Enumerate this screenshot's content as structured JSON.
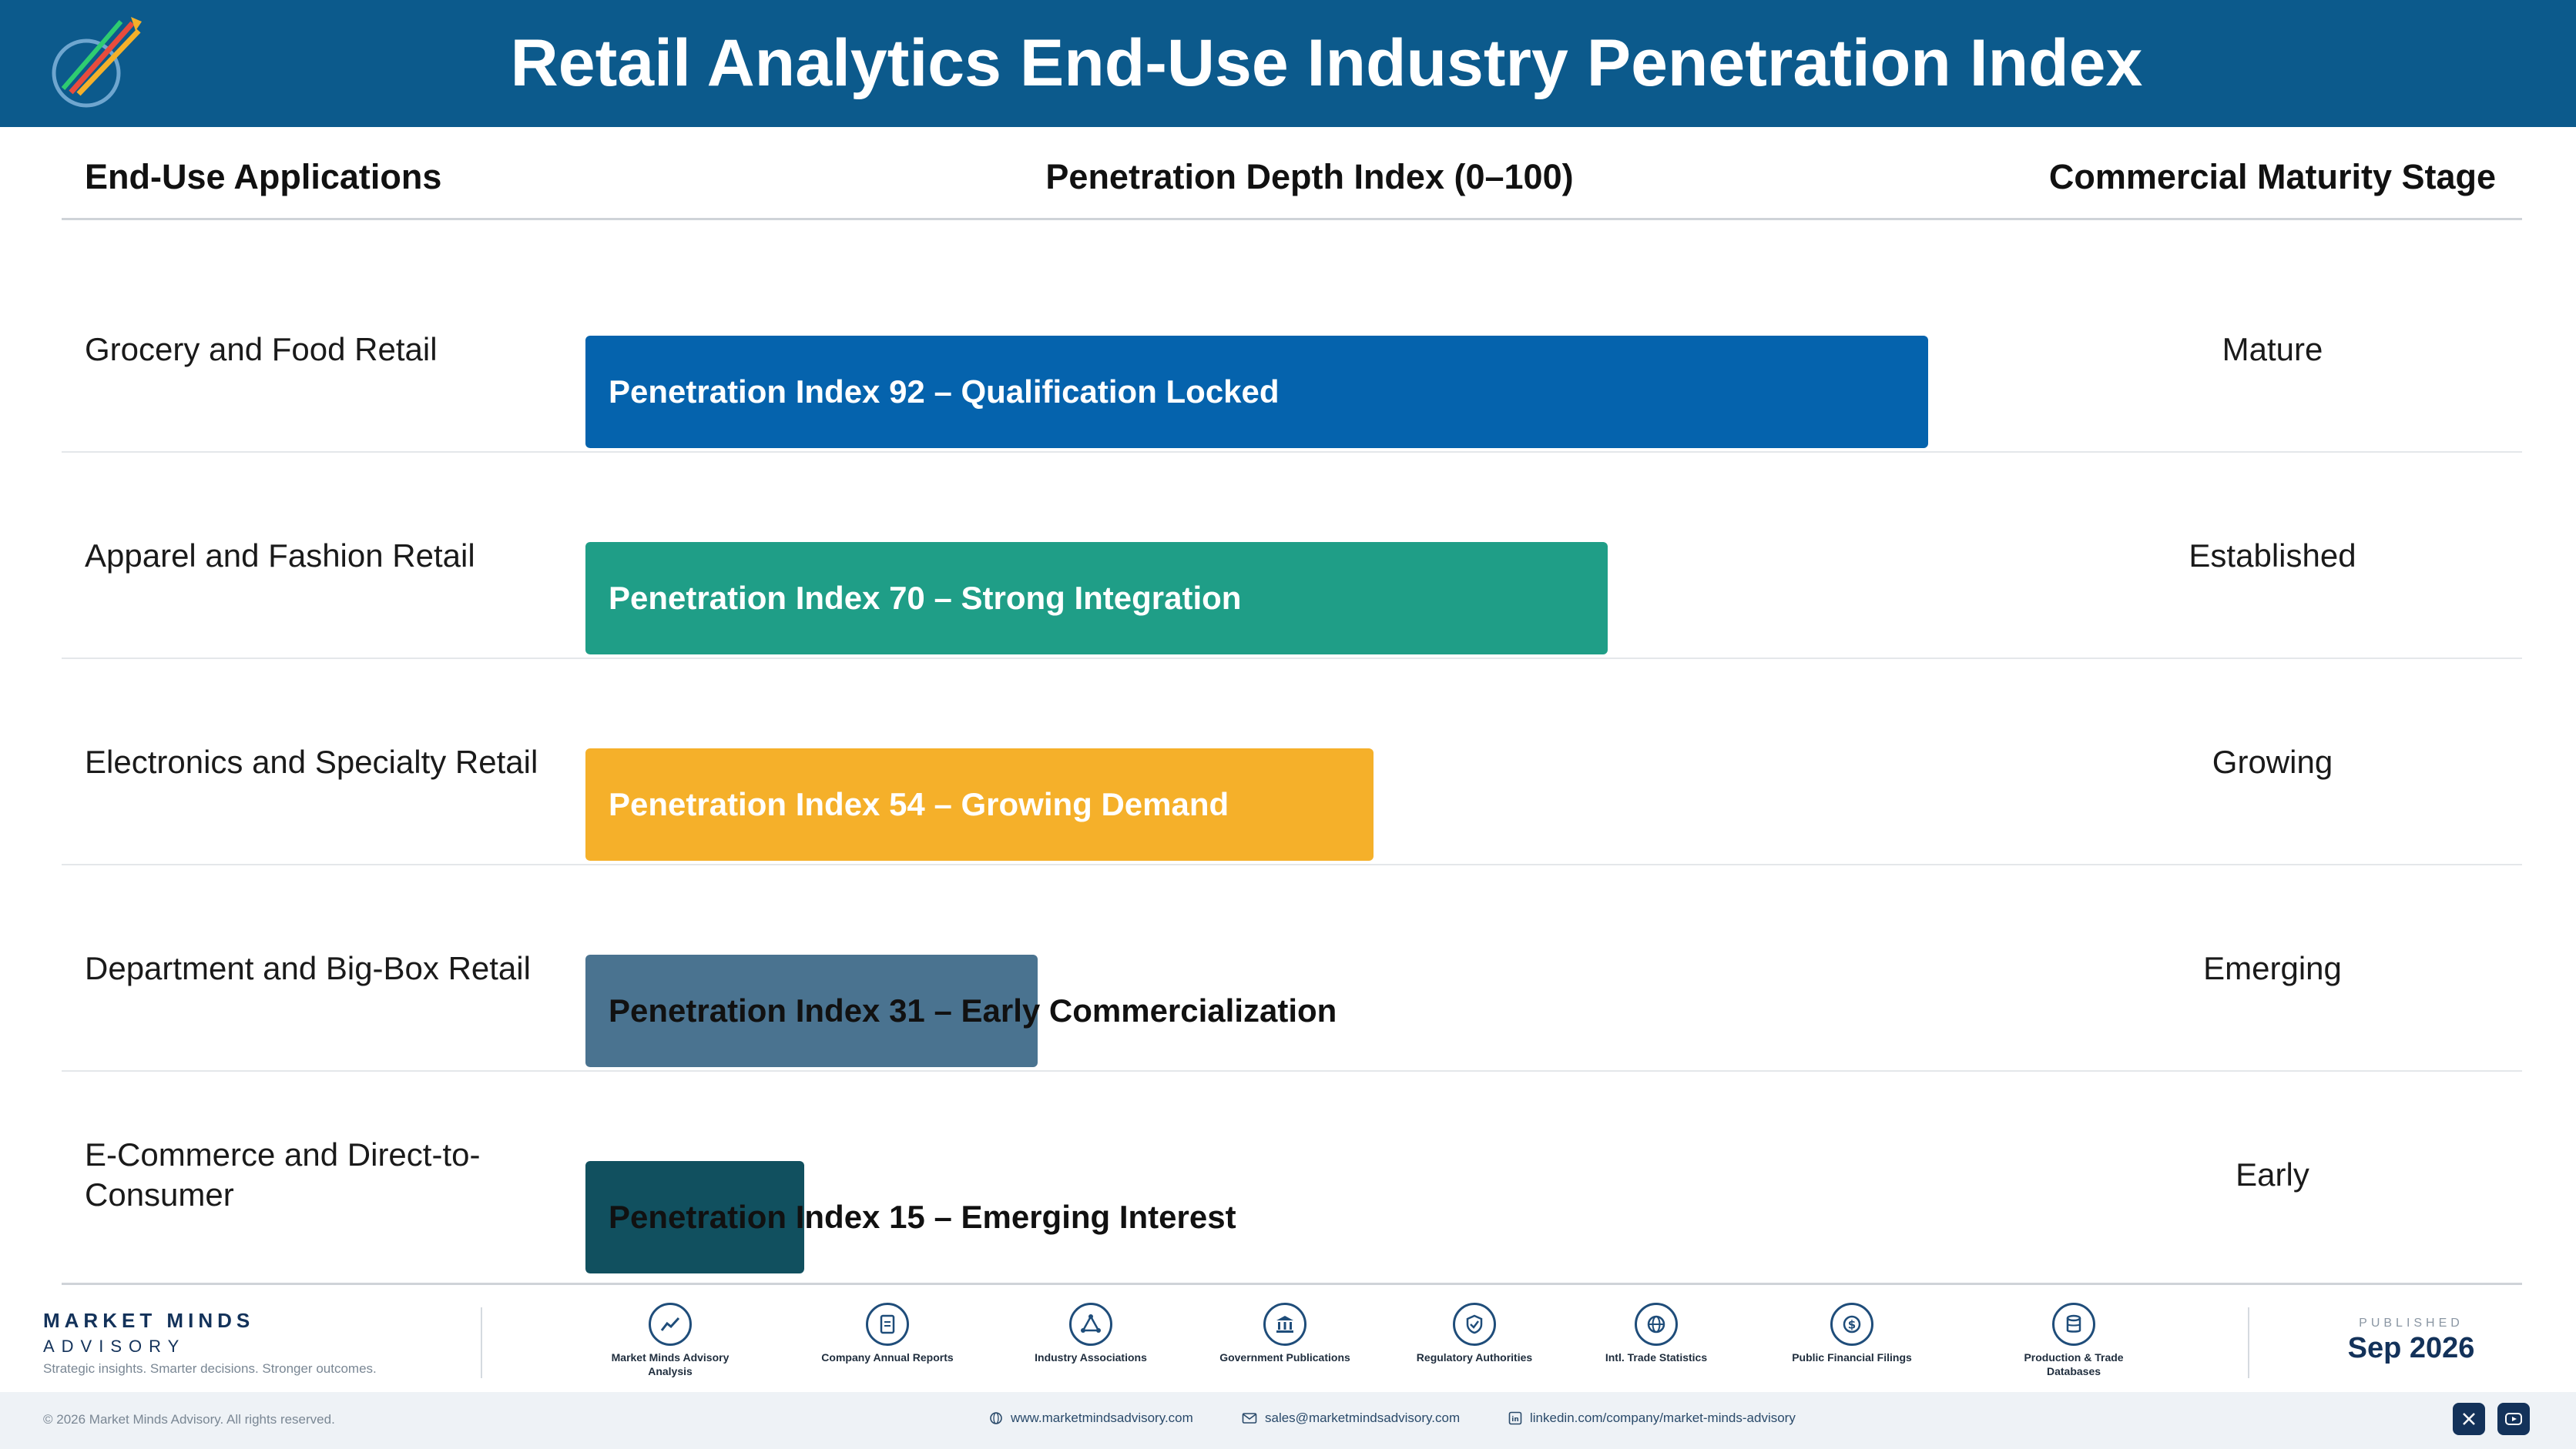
{
  "header": {
    "title": "Retail Analytics End-Use Industry Penetration Index"
  },
  "columns": {
    "applications": "End-Use Applications",
    "index": "Penetration Depth Index (0–100)",
    "stage": "Commercial Maturity Stage"
  },
  "chart_data": {
    "type": "bar",
    "orientation": "horizontal",
    "title": "Retail Analytics End-Use Industry Penetration Index",
    "xlim": [
      0,
      100
    ],
    "categories": [
      "Grocery and Food Retail",
      "Apparel and Fashion Retail",
      "Electronics and Specialty Retail",
      "Department and Big-Box Retail",
      "E-Commerce and Direct-to-Consumer"
    ],
    "values": [
      92,
      70,
      54,
      31,
      15
    ],
    "bar_labels": [
      "Penetration Index 92 – Qualification Locked",
      "Penetration Index 70 – Strong Integration",
      "Penetration Index 54 – Growing Demand",
      "Penetration Index 31 – Early Commercialization",
      "Penetration Index 15 – Emerging Interest"
    ],
    "stages": [
      "Mature",
      "Established",
      "Growing",
      "Emerging",
      "Early"
    ],
    "colors": [
      "#0563ad",
      "#1f9e87",
      "#f5b02a",
      "#4a7390",
      "#11505f"
    ]
  },
  "footer": {
    "brand_name": "MARKET MINDS",
    "brand_sub": "ADVISORY",
    "tagline": "Strategic insights. Smarter decisions. Stronger outcomes.",
    "sources": [
      {
        "label": "Market Minds Advisory Analysis",
        "icon": "trend-chart-icon"
      },
      {
        "label": "Company Annual Reports",
        "icon": "document-icon"
      },
      {
        "label": "Industry Associations",
        "icon": "network-icon"
      },
      {
        "label": "Government Publications",
        "icon": "government-building-icon"
      },
      {
        "label": "Regulatory Authorities",
        "icon": "shield-check-icon"
      },
      {
        "label": "Intl. Trade Statistics",
        "icon": "globe-icon"
      },
      {
        "label": "Public Financial Filings",
        "icon": "dollar-coin-icon"
      },
      {
        "label": "Production & Trade Databases",
        "icon": "database-icon"
      }
    ],
    "published_label": "PUBLISHED",
    "published_date": "Sep 2026",
    "copyright": "© 2026 Market Minds Advisory. All rights reserved.",
    "website": "www.marketmindsadvisory.com",
    "email": "sales@marketmindsadvisory.com",
    "linkedin": "linkedin.com/company/market-minds-advisory"
  }
}
